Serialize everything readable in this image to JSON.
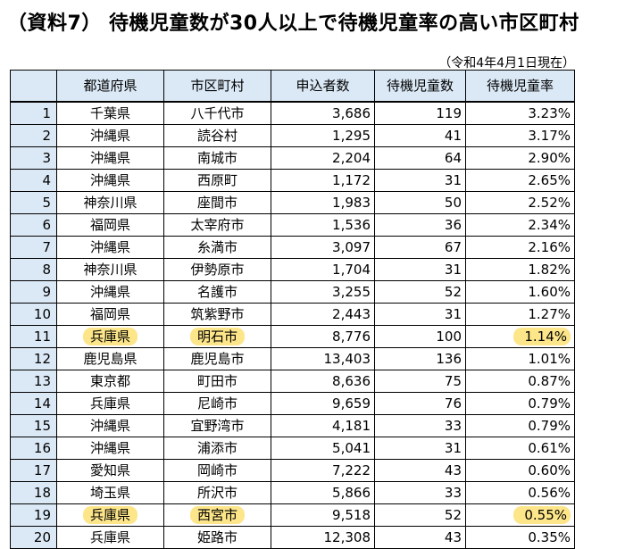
{
  "title": "（資料7） 待機児童数が30人以上で待機児童率の高い市区町村",
  "note": "（令和4年4月1日現在）",
  "table": {
    "headers": [
      "",
      "都道府県",
      "市区町村",
      "申込者数",
      "待機児童数",
      "待機児童率"
    ],
    "rows": [
      {
        "rank": "1",
        "pref": "千葉県",
        "city": "八千代市",
        "applicants": "3,686",
        "waiting": "119",
        "rate": "3.23%"
      },
      {
        "rank": "2",
        "pref": "沖縄県",
        "city": "読谷村",
        "applicants": "1,295",
        "waiting": "41",
        "rate": "3.17%"
      },
      {
        "rank": "3",
        "pref": "沖縄県",
        "city": "南城市",
        "applicants": "2,204",
        "waiting": "64",
        "rate": "2.90%"
      },
      {
        "rank": "4",
        "pref": "沖縄県",
        "city": "西原町",
        "applicants": "1,172",
        "waiting": "31",
        "rate": "2.65%"
      },
      {
        "rank": "5",
        "pref": "神奈川県",
        "city": "座間市",
        "applicants": "1,983",
        "waiting": "50",
        "rate": "2.52%"
      },
      {
        "rank": "6",
        "pref": "福岡県",
        "city": "太宰府市",
        "applicants": "1,536",
        "waiting": "36",
        "rate": "2.34%"
      },
      {
        "rank": "7",
        "pref": "沖縄県",
        "city": "糸満市",
        "applicants": "3,097",
        "waiting": "67",
        "rate": "2.16%"
      },
      {
        "rank": "8",
        "pref": "神奈川県",
        "city": "伊勢原市",
        "applicants": "1,704",
        "waiting": "31",
        "rate": "1.82%"
      },
      {
        "rank": "9",
        "pref": "沖縄県",
        "city": "名護市",
        "applicants": "3,255",
        "waiting": "52",
        "rate": "1.60%"
      },
      {
        "rank": "10",
        "pref": "福岡県",
        "city": "筑紫野市",
        "applicants": "2,443",
        "waiting": "31",
        "rate": "1.27%"
      },
      {
        "rank": "11",
        "pref": "兵庫県",
        "city": "明石市",
        "applicants": "8,776",
        "waiting": "100",
        "rate": "1.14%"
      },
      {
        "rank": "12",
        "pref": "鹿児島県",
        "city": "鹿児島市",
        "applicants": "13,403",
        "waiting": "136",
        "rate": "1.01%"
      },
      {
        "rank": "13",
        "pref": "東京都",
        "city": "町田市",
        "applicants": "8,636",
        "waiting": "75",
        "rate": "0.87%"
      },
      {
        "rank": "14",
        "pref": "兵庫県",
        "city": "尼崎市",
        "applicants": "9,659",
        "waiting": "76",
        "rate": "0.79%"
      },
      {
        "rank": "15",
        "pref": "沖縄県",
        "city": "宜野湾市",
        "applicants": "4,181",
        "waiting": "33",
        "rate": "0.79%"
      },
      {
        "rank": "16",
        "pref": "沖縄県",
        "city": "浦添市",
        "applicants": "5,041",
        "waiting": "31",
        "rate": "0.61%"
      },
      {
        "rank": "17",
        "pref": "愛知県",
        "city": "岡崎市",
        "applicants": "7,222",
        "waiting": "43",
        "rate": "0.60%"
      },
      {
        "rank": "18",
        "pref": "埼玉県",
        "city": "所沢市",
        "applicants": "5,866",
        "waiting": "33",
        "rate": "0.56%"
      },
      {
        "rank": "19",
        "pref": "兵庫県",
        "city": "西宮市",
        "applicants": "9,518",
        "waiting": "52",
        "rate": "0.55%"
      },
      {
        "rank": "20",
        "pref": "兵庫県",
        "city": "姫路市",
        "applicants": "12,308",
        "waiting": "43",
        "rate": "0.35%"
      }
    ],
    "highlighted_ranks": [
      "11",
      "19"
    ]
  },
  "colors": {
    "header_bg": "#dbe9f6",
    "highlight": "#fde68a"
  }
}
